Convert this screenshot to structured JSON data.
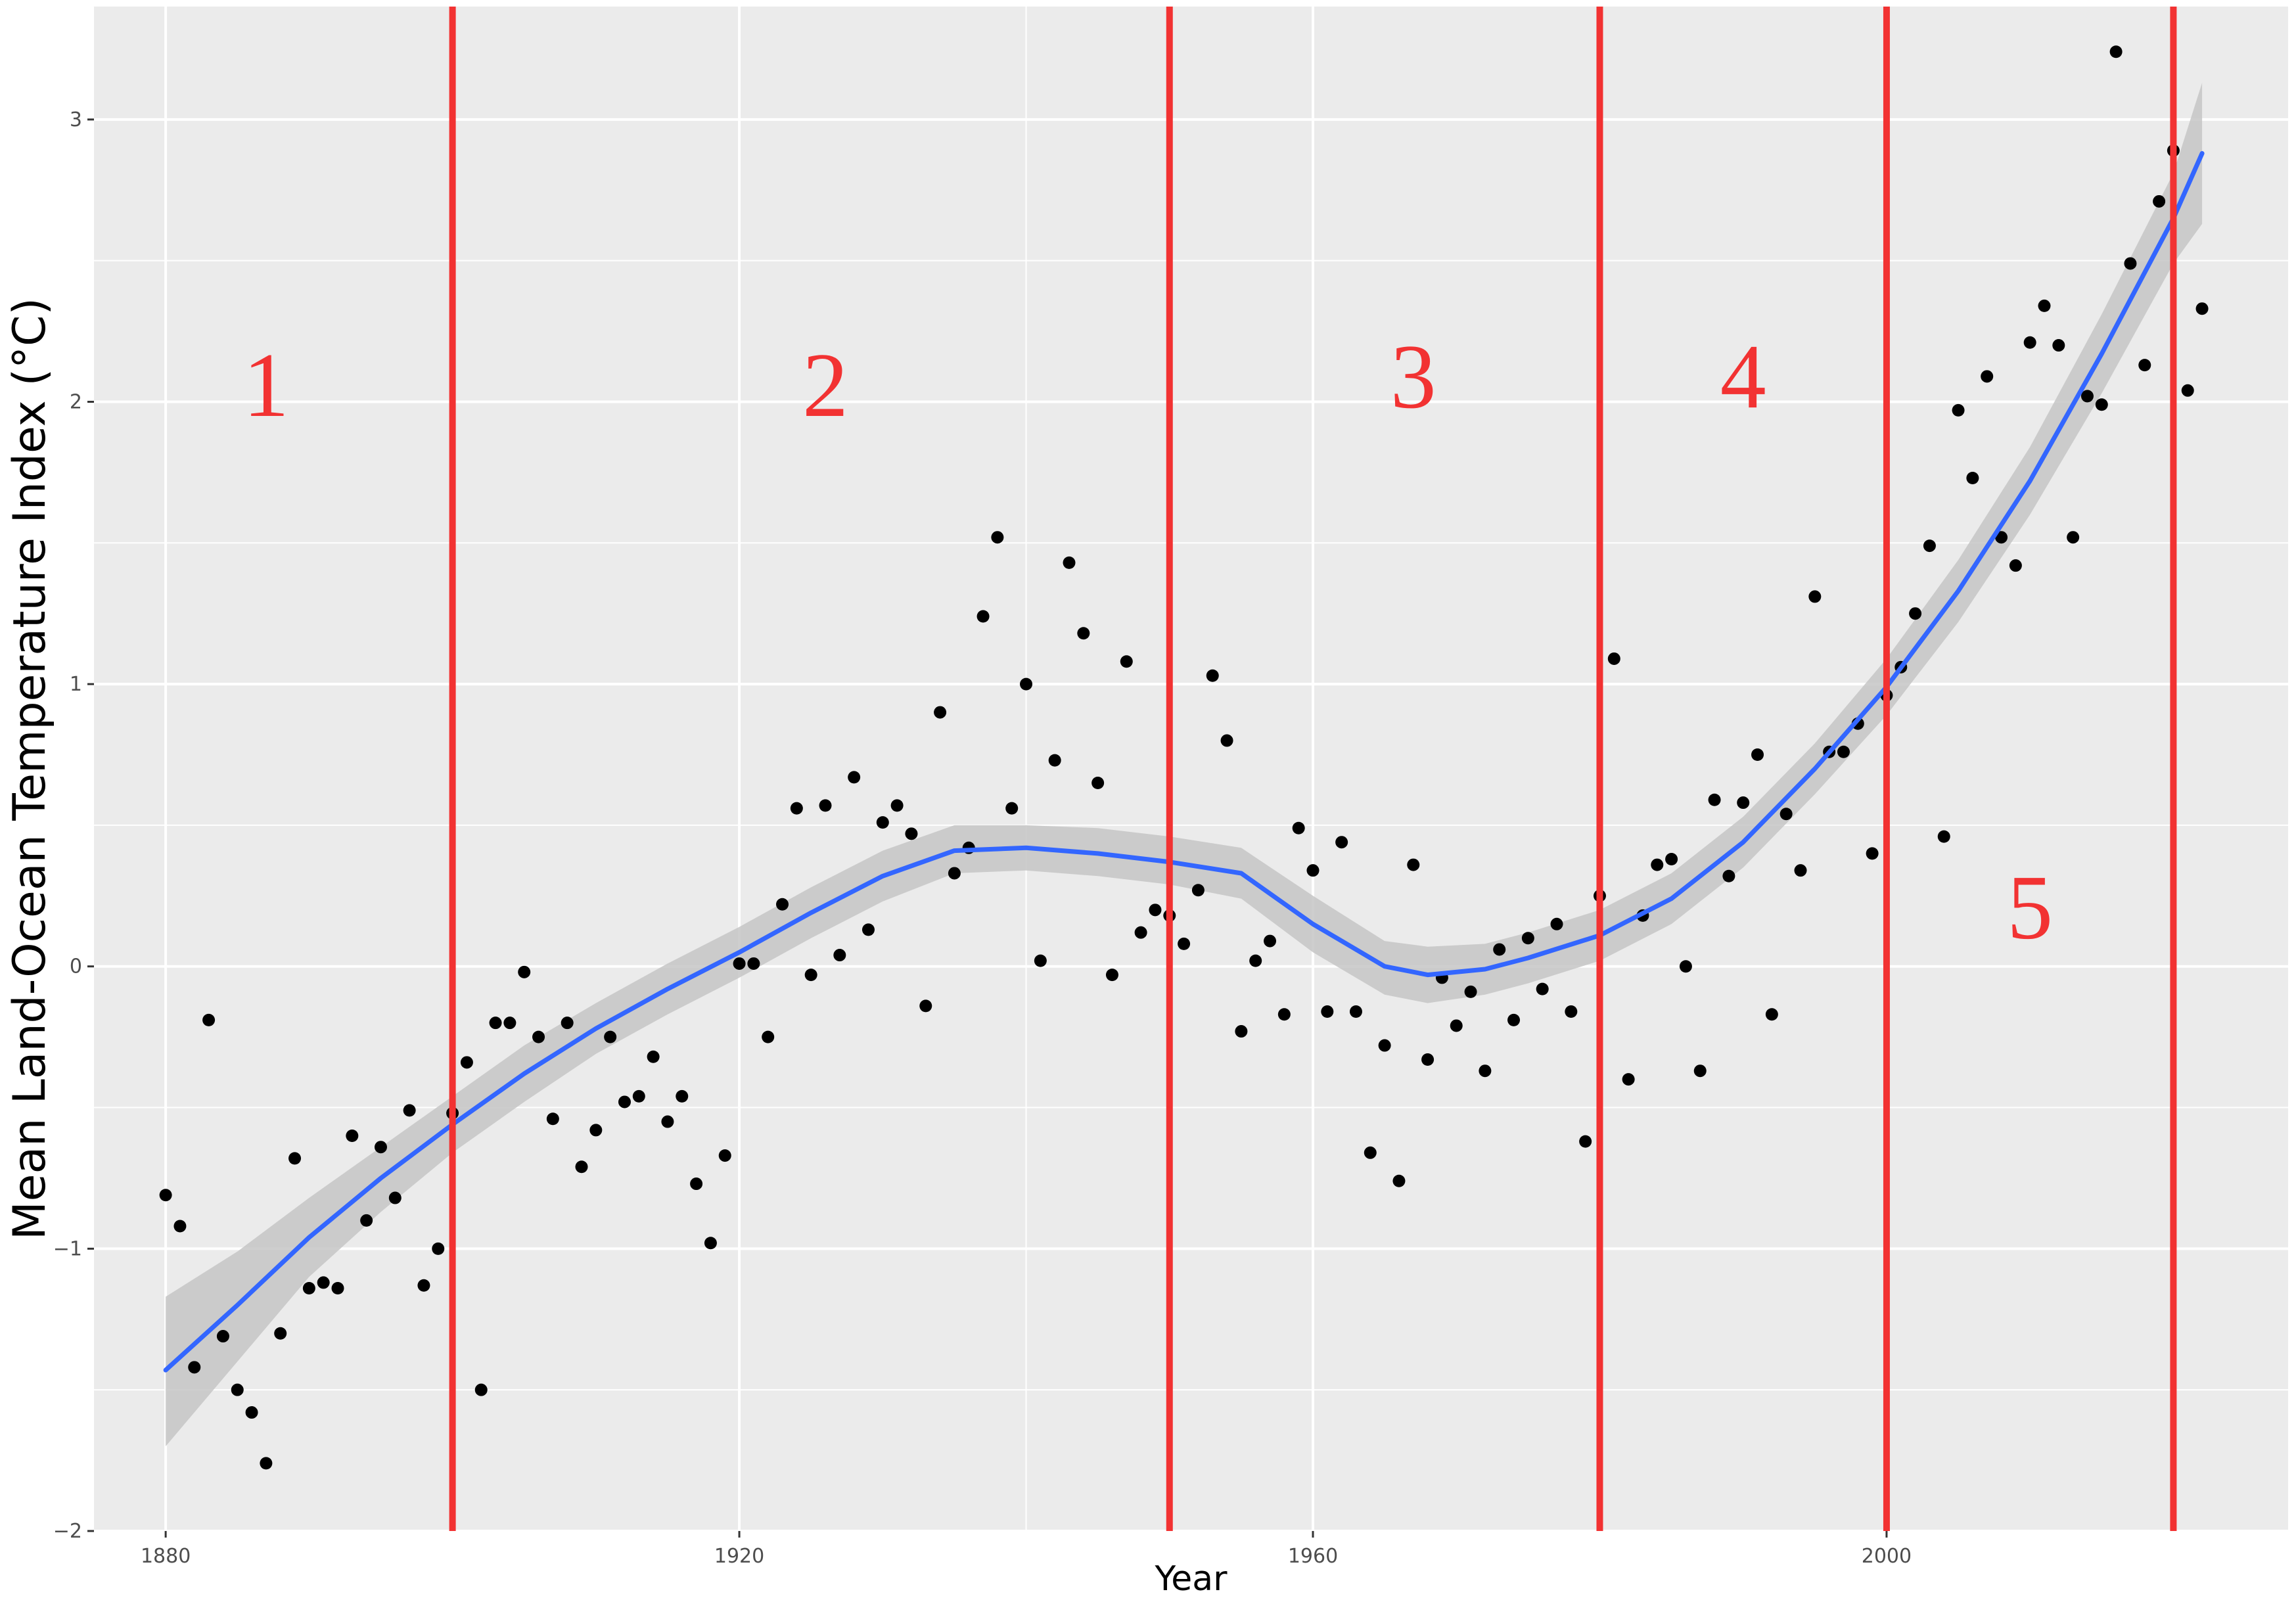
{
  "chart_data": {
    "type": "scatter",
    "title": "",
    "xlabel": "Year",
    "ylabel": "Mean Land-Ocean Temperature Index (°C)",
    "xlim": [
      1875,
      2028
    ],
    "ylim": [
      -2,
      3.4
    ],
    "x_ticks": [
      1880,
      1920,
      1960,
      2000
    ],
    "x_tick_labels": [
      "1880",
      "1920",
      "1960",
      "2000"
    ],
    "y_ticks": [
      -2,
      -1,
      0,
      1,
      2,
      3
    ],
    "y_tick_labels": [
      "−2",
      "−1",
      "0",
      "1",
      "2",
      "3"
    ],
    "grid": true,
    "legend": "none",
    "colors": {
      "panel": "#ebebeb",
      "grid": "#ffffff",
      "points": "#000000",
      "smooth_line": "#3366ff",
      "confidence_band": "#c6c6c6",
      "dividers": "#f23232"
    },
    "points": [
      [
        1880,
        -0.81
      ],
      [
        1881,
        -0.92
      ],
      [
        1882,
        -1.42
      ],
      [
        1883,
        -0.19
      ],
      [
        1884,
        -1.31
      ],
      [
        1885,
        -1.5
      ],
      [
        1886,
        -1.58
      ],
      [
        1887,
        -1.76
      ],
      [
        1888,
        -1.3
      ],
      [
        1889,
        -0.68
      ],
      [
        1890,
        -1.14
      ],
      [
        1891,
        -1.12
      ],
      [
        1892,
        -1.14
      ],
      [
        1893,
        -0.6
      ],
      [
        1894,
        -0.9
      ],
      [
        1895,
        -0.64
      ],
      [
        1896,
        -0.82
      ],
      [
        1897,
        -0.51
      ],
      [
        1898,
        -1.13
      ],
      [
        1899,
        -1.0
      ],
      [
        1900,
        -0.52
      ],
      [
        1901,
        -0.34
      ],
      [
        1902,
        -1.5
      ],
      [
        1903,
        -0.2
      ],
      [
        1904,
        -0.2
      ],
      [
        1905,
        -0.02
      ],
      [
        1906,
        -0.25
      ],
      [
        1907,
        -0.54
      ],
      [
        1908,
        -0.2
      ],
      [
        1909,
        -0.71
      ],
      [
        1910,
        -0.58
      ],
      [
        1911,
        -0.25
      ],
      [
        1912,
        -0.48
      ],
      [
        1913,
        -0.46
      ],
      [
        1914,
        -0.32
      ],
      [
        1915,
        -0.55
      ],
      [
        1916,
        -0.46
      ],
      [
        1917,
        -0.77
      ],
      [
        1918,
        -0.98
      ],
      [
        1919,
        -0.67
      ],
      [
        1920,
        0.01
      ],
      [
        1921,
        0.01
      ],
      [
        1922,
        -0.25
      ],
      [
        1923,
        0.22
      ],
      [
        1924,
        0.56
      ],
      [
        1925,
        -0.03
      ],
      [
        1926,
        0.57
      ],
      [
        1927,
        0.04
      ],
      [
        1928,
        0.67
      ],
      [
        1929,
        0.13
      ],
      [
        1930,
        0.51
      ],
      [
        1931,
        0.57
      ],
      [
        1932,
        0.47
      ],
      [
        1933,
        -0.14
      ],
      [
        1934,
        0.9
      ],
      [
        1935,
        0.33
      ],
      [
        1936,
        0.42
      ],
      [
        1937,
        1.24
      ],
      [
        1938,
        1.52
      ],
      [
        1939,
        0.56
      ],
      [
        1940,
        1.0
      ],
      [
        1941,
        0.02
      ],
      [
        1942,
        0.73
      ],
      [
        1943,
        1.43
      ],
      [
        1944,
        1.18
      ],
      [
        1945,
        0.65
      ],
      [
        1946,
        -0.03
      ],
      [
        1947,
        1.08
      ],
      [
        1948,
        0.12
      ],
      [
        1949,
        0.2
      ],
      [
        1950,
        0.18
      ],
      [
        1951,
        0.08
      ],
      [
        1952,
        0.27
      ],
      [
        1953,
        1.03
      ],
      [
        1954,
        0.8
      ],
      [
        1955,
        -0.23
      ],
      [
        1956,
        0.02
      ],
      [
        1957,
        0.09
      ],
      [
        1958,
        -0.17
      ],
      [
        1959,
        0.49
      ],
      [
        1960,
        0.34
      ],
      [
        1961,
        -0.16
      ],
      [
        1962,
        0.44
      ],
      [
        1963,
        -0.16
      ],
      [
        1964,
        -0.66
      ],
      [
        1965,
        -0.28
      ],
      [
        1966,
        -0.76
      ],
      [
        1967,
        0.36
      ],
      [
        1968,
        -0.33
      ],
      [
        1969,
        -0.04
      ],
      [
        1970,
        -0.21
      ],
      [
        1971,
        -0.09
      ],
      [
        1972,
        -0.37
      ],
      [
        1973,
        0.06
      ],
      [
        1974,
        -0.19
      ],
      [
        1975,
        0.1
      ],
      [
        1976,
        -0.08
      ],
      [
        1977,
        0.15
      ],
      [
        1978,
        -0.16
      ],
      [
        1979,
        -0.62
      ],
      [
        1980,
        0.25
      ],
      [
        1981,
        1.09
      ],
      [
        1982,
        -0.4
      ],
      [
        1983,
        0.18
      ],
      [
        1984,
        0.36
      ],
      [
        1985,
        0.38
      ],
      [
        1986,
        0.0
      ],
      [
        1987,
        -0.37
      ],
      [
        1988,
        0.59
      ],
      [
        1989,
        0.32
      ],
      [
        1990,
        0.58
      ],
      [
        1991,
        0.75
      ],
      [
        1992,
        -0.17
      ],
      [
        1993,
        0.54
      ],
      [
        1994,
        0.34
      ],
      [
        1995,
        1.31
      ],
      [
        1996,
        0.76
      ],
      [
        1997,
        0.76
      ],
      [
        1998,
        0.86
      ],
      [
        1999,
        0.4
      ],
      [
        2000,
        0.96
      ],
      [
        2001,
        1.06
      ],
      [
        2002,
        1.25
      ],
      [
        2003,
        1.49
      ],
      [
        2004,
        0.46
      ],
      [
        2005,
        1.97
      ],
      [
        2006,
        1.73
      ],
      [
        2007,
        2.09
      ],
      [
        2008,
        1.52
      ],
      [
        2009,
        1.42
      ],
      [
        2010,
        2.21
      ],
      [
        2011,
        2.34
      ],
      [
        2012,
        2.2
      ],
      [
        2013,
        1.52
      ],
      [
        2014,
        2.02
      ],
      [
        2015,
        1.99
      ],
      [
        2016,
        3.24
      ],
      [
        2017,
        2.49
      ],
      [
        2018,
        2.13
      ],
      [
        2019,
        2.71
      ],
      [
        2020,
        2.89
      ],
      [
        2021,
        2.04
      ],
      [
        2022,
        2.33
      ]
    ],
    "smooth": {
      "x": [
        1880,
        1885,
        1890,
        1895,
        1900,
        1905,
        1910,
        1915,
        1920,
        1925,
        1930,
        1935,
        1940,
        1945,
        1950,
        1955,
        1960,
        1965,
        1968,
        1972,
        1975,
        1980,
        1985,
        1990,
        1995,
        2000,
        2005,
        2010,
        2015,
        2020,
        2022
      ],
      "y": [
        -1.43,
        -1.2,
        -0.96,
        -0.75,
        -0.56,
        -0.38,
        -0.22,
        -0.08,
        0.05,
        0.19,
        0.32,
        0.41,
        0.42,
        0.4,
        0.37,
        0.33,
        0.15,
        0.0,
        -0.03,
        -0.01,
        0.03,
        0.11,
        0.24,
        0.44,
        0.7,
        0.99,
        1.33,
        1.72,
        2.17,
        2.65,
        2.88
      ],
      "lo": [
        -1.7,
        -1.4,
        -1.1,
        -0.87,
        -0.66,
        -0.48,
        -0.31,
        -0.17,
        -0.04,
        0.1,
        0.23,
        0.33,
        0.34,
        0.32,
        0.29,
        0.24,
        0.05,
        -0.1,
        -0.13,
        -0.1,
        -0.06,
        0.02,
        0.15,
        0.35,
        0.61,
        0.89,
        1.22,
        1.6,
        2.03,
        2.49,
        2.63
      ],
      "hi": [
        -1.17,
        -1.01,
        -0.82,
        -0.64,
        -0.46,
        -0.28,
        -0.13,
        0.01,
        0.14,
        0.28,
        0.41,
        0.5,
        0.5,
        0.49,
        0.46,
        0.42,
        0.25,
        0.09,
        0.07,
        0.08,
        0.12,
        0.2,
        0.33,
        0.53,
        0.79,
        1.09,
        1.44,
        1.84,
        2.31,
        2.81,
        3.13
      ]
    },
    "dividers": [
      1900,
      1950,
      1980,
      2000,
      2020
    ],
    "regions": [
      {
        "label": "1",
        "x": 1887,
        "y": 1.95
      },
      {
        "label": "2",
        "x": 1926,
        "y": 1.95
      },
      {
        "label": "3",
        "x": 1967,
        "y": 1.98
      },
      {
        "label": "4",
        "x": 1990,
        "y": 1.98
      },
      {
        "label": "5",
        "x": 2010,
        "y": 0.1
      }
    ]
  }
}
